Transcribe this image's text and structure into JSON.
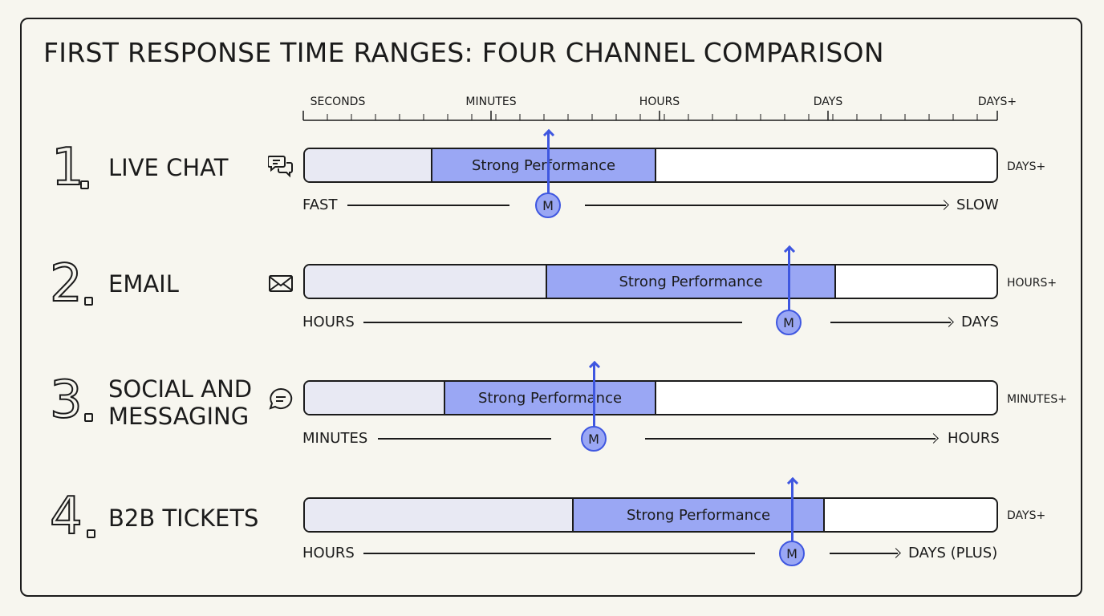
{
  "title": "FIRST RESPONSE TIME RANGES: FOUR CHANNEL COMPARISON",
  "colors": {
    "background": "#f7f6ef",
    "strong_fill": "#9aa7f4",
    "pre_fill": "#e8e9f3",
    "marker_accent": "#3f57e0"
  },
  "scale": {
    "labels": [
      "SECONDS",
      "MINUTES",
      "HOURS",
      "DAYS",
      "DAYS+"
    ]
  },
  "channels": [
    {
      "number": "1",
      "name": "LIVE CHAT",
      "icon": "chat-bubbles-icon",
      "segment_label": "Strong Performance",
      "tail_label": "DAYS+",
      "axis_start": "FAST",
      "axis_end": "SLOW",
      "marker": "M"
    },
    {
      "number": "2",
      "name": "EMAIL",
      "icon": "envelope-icon",
      "segment_label": "Strong Performance",
      "tail_label": "HOURS+",
      "axis_start": "HOURS",
      "axis_end": "DAYS",
      "marker": "M"
    },
    {
      "number": "3",
      "name_lines": [
        "SOCIAL AND",
        "MESSAGING"
      ],
      "icon": "message-bubble-icon",
      "segment_label": "Strong Performance",
      "tail_label": "MINUTES+",
      "axis_start": "MINUTES",
      "axis_end": "HOURS",
      "marker": "M"
    },
    {
      "number": "4",
      "name": "B2B TICKETS",
      "icon": "",
      "segment_label": "Strong Performance",
      "tail_label": "DAYS+",
      "axis_start": "HOURS",
      "axis_end": "DAYS (PLUS)",
      "marker": "M"
    }
  ]
}
